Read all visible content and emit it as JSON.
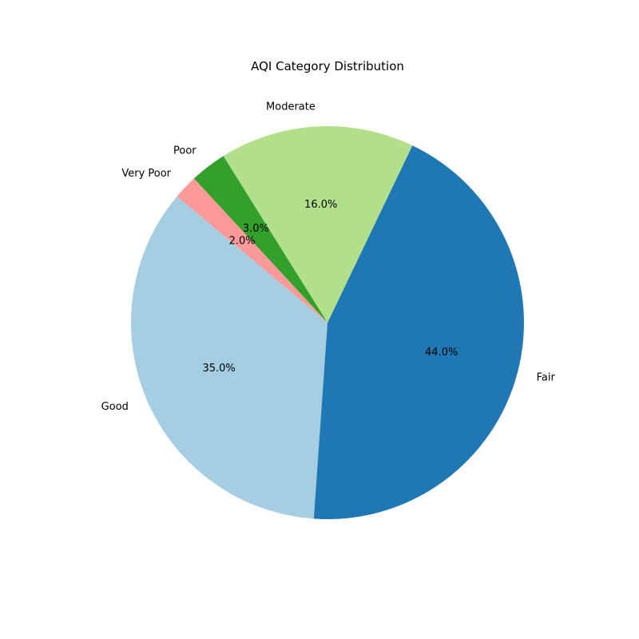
{
  "chart_data": {
    "type": "pie",
    "title": "AQI Category Distribution",
    "categories": [
      "Good",
      "Fair",
      "Moderate",
      "Poor",
      "Very Poor"
    ],
    "values": [
      35.0,
      44.0,
      16.0,
      3.0,
      2.0
    ],
    "value_labels": [
      "35.0%",
      "44.0%",
      "16.0%",
      "3.0%",
      "2.0%"
    ],
    "colors": [
      "#a6cee3",
      "#1f78b4",
      "#b2df8a",
      "#33a02c",
      "#fb9a99"
    ],
    "start_angle_deg": 140,
    "direction": "counterclockwise",
    "legend": "none"
  }
}
